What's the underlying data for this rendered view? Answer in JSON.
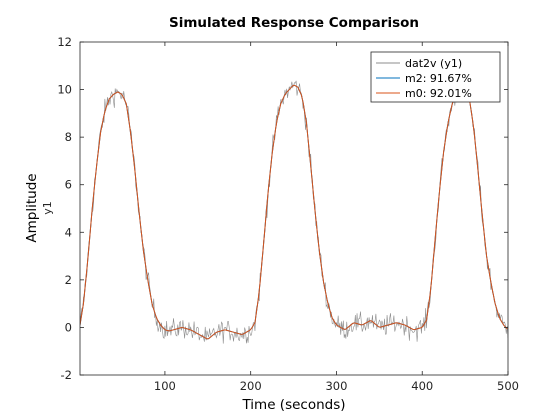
{
  "chart_data": {
    "type": "line",
    "title": "Simulated Response Comparison",
    "xlabel": "Time (seconds)",
    "ylabel": "Amplitude",
    "output_label": "y1",
    "xlim": [
      1,
      500
    ],
    "ylim": [
      -2,
      12
    ],
    "xticks": [
      100,
      200,
      300,
      400,
      500
    ],
    "yticks": [
      -2,
      0,
      2,
      4,
      6,
      8,
      10,
      12
    ],
    "grid": false,
    "legend_position": "top-right",
    "series": [
      {
        "name": "dat2v (y1)",
        "color": "#8c8c8c",
        "noisy": true,
        "x": [
          1,
          5,
          10,
          15,
          20,
          25,
          30,
          35,
          40,
          45,
          50,
          55,
          60,
          65,
          70,
          75,
          80,
          85,
          90,
          95,
          100,
          105,
          110,
          120,
          130,
          140,
          150,
          160,
          170,
          180,
          190,
          200,
          205,
          210,
          215,
          220,
          225,
          230,
          235,
          240,
          245,
          250,
          255,
          260,
          265,
          270,
          275,
          280,
          285,
          290,
          295,
          300,
          305,
          310,
          320,
          330,
          340,
          350,
          360,
          370,
          380,
          390,
          400,
          405,
          410,
          415,
          420,
          425,
          430,
          435,
          440,
          445,
          450,
          455,
          460,
          465,
          470,
          475,
          480,
          485,
          490,
          495,
          500
        ],
        "values": [
          0.1,
          1.0,
          2.8,
          4.9,
          6.7,
          8.2,
          9.1,
          9.6,
          9.8,
          9.9,
          9.8,
          9.4,
          8.2,
          6.6,
          4.8,
          3.2,
          2.0,
          1.0,
          0.4,
          0.1,
          -0.1,
          -0.15,
          -0.1,
          0.0,
          -0.1,
          -0.3,
          -0.5,
          -0.2,
          -0.1,
          -0.2,
          -0.3,
          -0.1,
          0.2,
          1.5,
          3.5,
          5.6,
          7.3,
          8.6,
          9.4,
          9.8,
          10.0,
          10.2,
          10.1,
          9.7,
          8.6,
          6.8,
          4.9,
          3.2,
          1.9,
          1.0,
          0.4,
          0.1,
          0.0,
          -0.1,
          0.2,
          0.1,
          0.3,
          0.0,
          0.1,
          0.2,
          0.1,
          -0.1,
          0.0,
          0.3,
          1.6,
          3.7,
          5.7,
          7.4,
          8.6,
          9.4,
          9.8,
          9.9,
          9.8,
          9.6,
          8.4,
          6.6,
          4.7,
          3.0,
          1.9,
          1.0,
          0.4,
          0.1,
          -0.1
        ]
      },
      {
        "name": "m2: 91.67%",
        "color": "#0072bd",
        "x": [
          1,
          5,
          10,
          15,
          20,
          25,
          30,
          35,
          40,
          45,
          50,
          55,
          60,
          65,
          70,
          75,
          80,
          85,
          90,
          95,
          100,
          105,
          110,
          120,
          130,
          140,
          150,
          160,
          170,
          180,
          190,
          200,
          205,
          210,
          215,
          220,
          225,
          230,
          235,
          240,
          245,
          250,
          255,
          260,
          265,
          270,
          275,
          280,
          285,
          290,
          295,
          300,
          305,
          310,
          320,
          330,
          340,
          350,
          360,
          370,
          380,
          390,
          400,
          405,
          410,
          415,
          420,
          425,
          430,
          435,
          440,
          445,
          450,
          455,
          460,
          465,
          470,
          475,
          480,
          485,
          490,
          495,
          500
        ],
        "values": [
          0.1,
          1.0,
          2.8,
          4.9,
          6.7,
          8.2,
          9.1,
          9.6,
          9.8,
          9.9,
          9.8,
          9.4,
          8.2,
          6.6,
          4.8,
          3.2,
          2.0,
          1.0,
          0.4,
          0.1,
          -0.1,
          -0.15,
          -0.1,
          0.0,
          -0.1,
          -0.3,
          -0.5,
          -0.2,
          -0.1,
          -0.2,
          -0.3,
          -0.1,
          0.2,
          1.5,
          3.5,
          5.6,
          7.3,
          8.6,
          9.4,
          9.8,
          10.0,
          10.2,
          10.1,
          9.7,
          8.6,
          6.8,
          4.9,
          3.2,
          1.9,
          1.0,
          0.4,
          0.1,
          0.0,
          -0.1,
          0.2,
          0.1,
          0.3,
          0.0,
          0.1,
          0.2,
          0.1,
          -0.1,
          0.0,
          0.3,
          1.6,
          3.7,
          5.7,
          7.4,
          8.6,
          9.4,
          9.8,
          9.9,
          9.8,
          9.6,
          8.4,
          6.6,
          4.7,
          3.0,
          1.9,
          1.0,
          0.4,
          0.1,
          -0.1
        ]
      },
      {
        "name": "m0: 92.01%",
        "color": "#d95319",
        "x": [
          1,
          5,
          10,
          15,
          20,
          25,
          30,
          35,
          40,
          45,
          50,
          55,
          60,
          65,
          70,
          75,
          80,
          85,
          90,
          95,
          100,
          105,
          110,
          120,
          130,
          140,
          150,
          160,
          170,
          180,
          190,
          200,
          205,
          210,
          215,
          220,
          225,
          230,
          235,
          240,
          245,
          250,
          255,
          260,
          265,
          270,
          275,
          280,
          285,
          290,
          295,
          300,
          305,
          310,
          320,
          330,
          340,
          350,
          360,
          370,
          380,
          390,
          400,
          405,
          410,
          415,
          420,
          425,
          430,
          435,
          440,
          445,
          450,
          455,
          460,
          465,
          470,
          475,
          480,
          485,
          490,
          495,
          500
        ],
        "values": [
          0.1,
          1.0,
          2.8,
          4.9,
          6.7,
          8.2,
          9.1,
          9.6,
          9.8,
          9.9,
          9.8,
          9.4,
          8.2,
          6.6,
          4.8,
          3.2,
          2.0,
          1.0,
          0.4,
          0.1,
          -0.1,
          -0.15,
          -0.1,
          0.0,
          -0.1,
          -0.3,
          -0.5,
          -0.2,
          -0.1,
          -0.2,
          -0.3,
          -0.1,
          0.2,
          1.5,
          3.5,
          5.6,
          7.3,
          8.6,
          9.4,
          9.8,
          10.0,
          10.2,
          10.1,
          9.7,
          8.6,
          6.8,
          4.9,
          3.2,
          1.9,
          1.0,
          0.4,
          0.1,
          0.0,
          -0.1,
          0.2,
          0.1,
          0.3,
          0.0,
          0.1,
          0.2,
          0.1,
          -0.1,
          0.0,
          0.3,
          1.6,
          3.7,
          5.7,
          7.4,
          8.6,
          9.4,
          9.8,
          9.9,
          9.8,
          9.6,
          8.4,
          6.6,
          4.7,
          3.0,
          1.9,
          1.0,
          0.4,
          0.1,
          -0.1
        ]
      }
    ]
  }
}
